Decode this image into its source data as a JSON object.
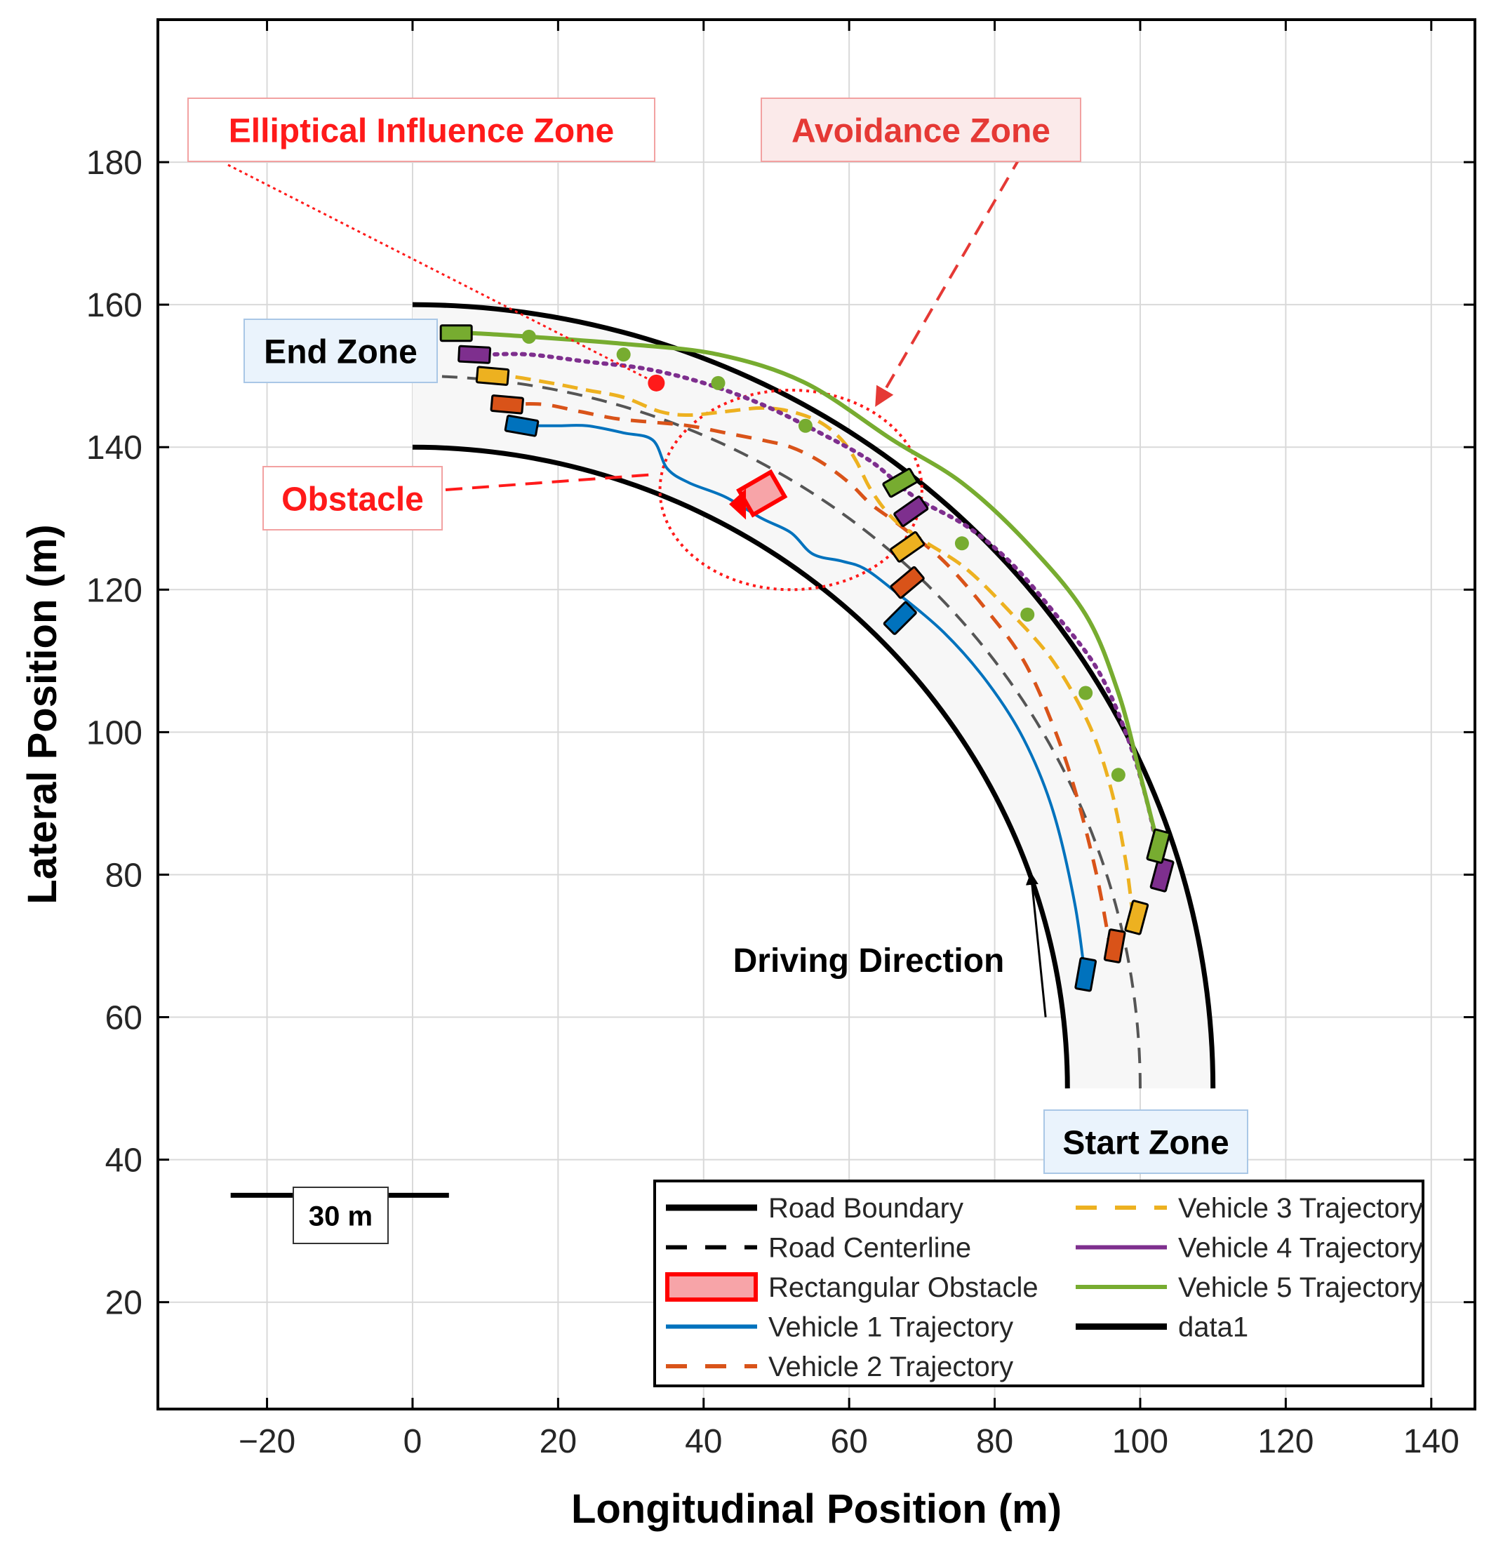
{
  "chart_data": {
    "type": "line",
    "xlabel": "Longitudinal Position (m)",
    "ylabel": "Lateral Position (m)",
    "xlim": [
      -35,
      146
    ],
    "ylim": [
      5,
      200
    ],
    "xticks": [
      -20,
      0,
      20,
      40,
      60,
      80,
      100,
      120,
      140
    ],
    "yticks": [
      20,
      40,
      60,
      80,
      100,
      120,
      140,
      160,
      180
    ],
    "grid": true,
    "legend_placement": "bottom-right",
    "legend": [
      {
        "label": "Road Boundary",
        "color": "#000000",
        "style": "solid-thick"
      },
      {
        "label": "Road Centerline",
        "color": "#000000",
        "style": "dashed"
      },
      {
        "label": "Rectangular Obstacle",
        "color": "#ff0000",
        "style": "patch"
      },
      {
        "label": "Vehicle 1 Trajectory",
        "color": "#0072bd",
        "style": "solid"
      },
      {
        "label": "Vehicle 2 Trajectory",
        "color": "#d95319",
        "style": "dashed"
      },
      {
        "label": "Vehicle 3 Trajectory",
        "color": "#edb120",
        "style": "dashed"
      },
      {
        "label": "Vehicle 4 Trajectory",
        "color": "#7e2f8e",
        "style": "dotted"
      },
      {
        "label": "Vehicle 5 Trajectory",
        "color": "#77ac30",
        "style": "solid-markers"
      },
      {
        "label": "data1",
        "color": "#000000",
        "style": "solid-thick"
      }
    ],
    "road": {
      "center": [
        0,
        50
      ],
      "outer_radius": 110,
      "inner_radius": 90,
      "centerline_radius": 100,
      "straight_bottom_y": 50
    },
    "series": [
      {
        "name": "Vehicle 1 Trajectory",
        "color": "#0072bd",
        "x": [
          92.5,
          91,
          88,
          84,
          79,
          73,
          66,
          62,
          59,
          55,
          52,
          48,
          43,
          38,
          35,
          33,
          29,
          24,
          20,
          17,
          15
        ],
        "y": [
          65,
          76,
          89,
          99,
          107,
          114,
          120,
          123,
          124,
          125,
          128,
          130,
          133,
          135,
          137,
          141,
          142,
          143,
          143,
          143,
          143
        ]
      },
      {
        "name": "Vehicle 2 Trajectory",
        "color": "#d95319",
        "x": [
          96,
          94,
          91,
          88,
          84,
          79,
          73,
          67,
          63,
          60,
          56,
          52,
          48,
          43,
          38,
          33,
          28,
          23,
          18,
          13
        ],
        "y": [
          69,
          80,
          92,
          101,
          110,
          117,
          124,
          129,
          132,
          135,
          138,
          140,
          141,
          142,
          143,
          143.5,
          144,
          145,
          146,
          146
        ]
      },
      {
        "name": "Vehicle 3 Trajectory",
        "color": "#edb120",
        "x": [
          99,
          98,
          96,
          93,
          88,
          82,
          76,
          70,
          66,
          63,
          61,
          59,
          56,
          52,
          48,
          43,
          38,
          34,
          29,
          24,
          19,
          13,
          10
        ],
        "y": [
          74,
          82,
          92,
          101,
          110,
          117,
          123,
          127,
          130,
          134,
          138,
          141,
          143.5,
          145,
          145.5,
          145,
          144.5,
          145,
          147,
          148,
          149,
          150,
          150
        ]
      },
      {
        "name": "Vehicle 4 Trajectory",
        "color": "#7e2f8e",
        "x": [
          103,
          101,
          98,
          94,
          88,
          82,
          76,
          69,
          63,
          56,
          48,
          40,
          32,
          24,
          16,
          10,
          7
        ],
        "y": [
          80,
          90,
          100,
          109,
          117,
          124,
          129,
          133,
          138,
          142,
          146,
          149,
          151,
          152,
          153,
          153,
          153
        ]
      },
      {
        "name": "Vehicle 5 Trajectory",
        "color": "#77ac30",
        "x": [
          102.5,
          100,
          97,
          92.5,
          84.5,
          75.5,
          66,
          54,
          42,
          29,
          16,
          8,
          4
        ],
        "y": [
          84,
          94,
          105.5,
          116.5,
          126.5,
          135,
          141,
          149,
          153,
          154.5,
          155.5,
          156,
          156
        ]
      }
    ],
    "series5_markers": {
      "x": [
        97,
        92.5,
        84.5,
        75.5,
        54,
        42,
        29,
        16
      ],
      "y": [
        94,
        105.5,
        116.5,
        126.5,
        143,
        149,
        153,
        155.5
      ]
    },
    "vehicles": [
      {
        "color": "#0072bd",
        "x": 92.5,
        "y": 66,
        "angle": -80
      },
      {
        "color": "#0072bd",
        "x": 67,
        "y": 116,
        "angle": -45
      },
      {
        "color": "#0072bd",
        "x": 15,
        "y": 143,
        "angle": 10
      },
      {
        "color": "#d95319",
        "x": 96.5,
        "y": 70,
        "angle": -80
      },
      {
        "color": "#d95319",
        "x": 68,
        "y": 121,
        "angle": -40
      },
      {
        "color": "#d95319",
        "x": 13,
        "y": 146,
        "angle": 5
      },
      {
        "color": "#edb120",
        "x": 99.5,
        "y": 74,
        "angle": -75
      },
      {
        "color": "#edb120",
        "x": 68,
        "y": 126,
        "angle": -35
      },
      {
        "color": "#edb120",
        "x": 11,
        "y": 150,
        "angle": 5
      },
      {
        "color": "#7e2f8e",
        "x": 103,
        "y": 80,
        "angle": -75
      },
      {
        "color": "#7e2f8e",
        "x": 68.5,
        "y": 131,
        "angle": -35
      },
      {
        "color": "#7e2f8e",
        "x": 8.5,
        "y": 153,
        "angle": 3
      },
      {
        "color": "#77ac30",
        "x": 102.5,
        "y": 84,
        "angle": -75
      },
      {
        "color": "#77ac30",
        "x": 67,
        "y": 135,
        "angle": -30
      },
      {
        "color": "#77ac30",
        "x": 6,
        "y": 156,
        "angle": 0
      }
    ],
    "obstacle": {
      "x": 48,
      "y": 133.5,
      "angle": -30,
      "color": "#ff0000"
    },
    "influence_ellipse": {
      "cx": 52,
      "cy": 134,
      "rx": 18,
      "ry": 14
    },
    "influence_marker": {
      "x": 33.5,
      "y": 149
    },
    "driving_arrow": {
      "x1": 87,
      "y1": 60,
      "x2": 85,
      "y2": 80
    },
    "annotations": {
      "elliptical_zone": "Elliptical Influence Zone",
      "avoidance_zone": "Avoidance Zone",
      "obstacle": "Obstacle",
      "end_zone": "End Zone",
      "start_zone": "Start Zone",
      "driving_direction": "Driving Direction",
      "scale_bar": "30 m"
    },
    "scale_bar": {
      "x1": -25,
      "x2": 5,
      "y": 35
    }
  }
}
